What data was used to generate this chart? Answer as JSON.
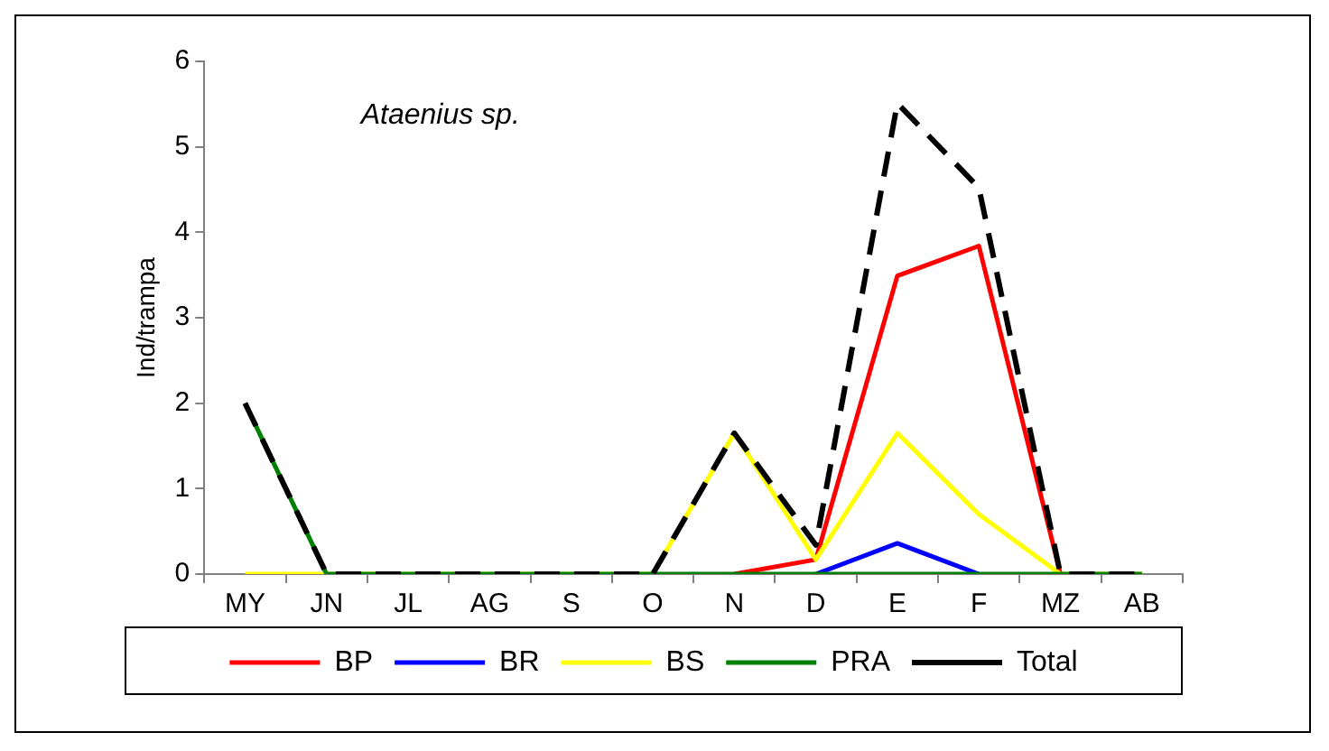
{
  "chart_data": {
    "type": "line",
    "ylabel": "Ind/trampa",
    "annotations": [
      "Ataenius sp."
    ],
    "categories": [
      "MY",
      "JN",
      "JL",
      "AG",
      "S",
      "O",
      "N",
      "D",
      "E",
      "F",
      "MZ",
      "AB"
    ],
    "series": [
      {
        "name": "BP",
        "color": "#ff0000",
        "values": [
          null,
          null,
          null,
          null,
          null,
          null,
          0,
          0.17,
          3.49,
          3.84,
          0,
          null
        ]
      },
      {
        "name": "BR",
        "color": "#0000ff",
        "values": [
          null,
          null,
          null,
          null,
          null,
          null,
          null,
          0,
          0.36,
          0,
          null,
          null
        ]
      },
      {
        "name": "BS",
        "color": "#ffff00",
        "values": [
          0,
          0,
          0,
          0,
          0,
          0,
          1.65,
          0.17,
          1.65,
          0.7,
          0,
          0
        ]
      },
      {
        "name": "PRA",
        "color": "#008000",
        "values": [
          2,
          0,
          0,
          0,
          0,
          0,
          0,
          0,
          0,
          0,
          0,
          0
        ]
      },
      {
        "name": "Total",
        "color": "#000000",
        "line_style": "dashed",
        "values": [
          2,
          0,
          0,
          0,
          0,
          0,
          1.65,
          0.34,
          5.51,
          4.52,
          0,
          0
        ]
      }
    ],
    "ylim": [
      0,
      6
    ],
    "yticks": [
      0,
      1,
      2,
      3,
      4,
      5,
      6
    ],
    "grid": false,
    "legend": "bottom",
    "marker": "none"
  }
}
